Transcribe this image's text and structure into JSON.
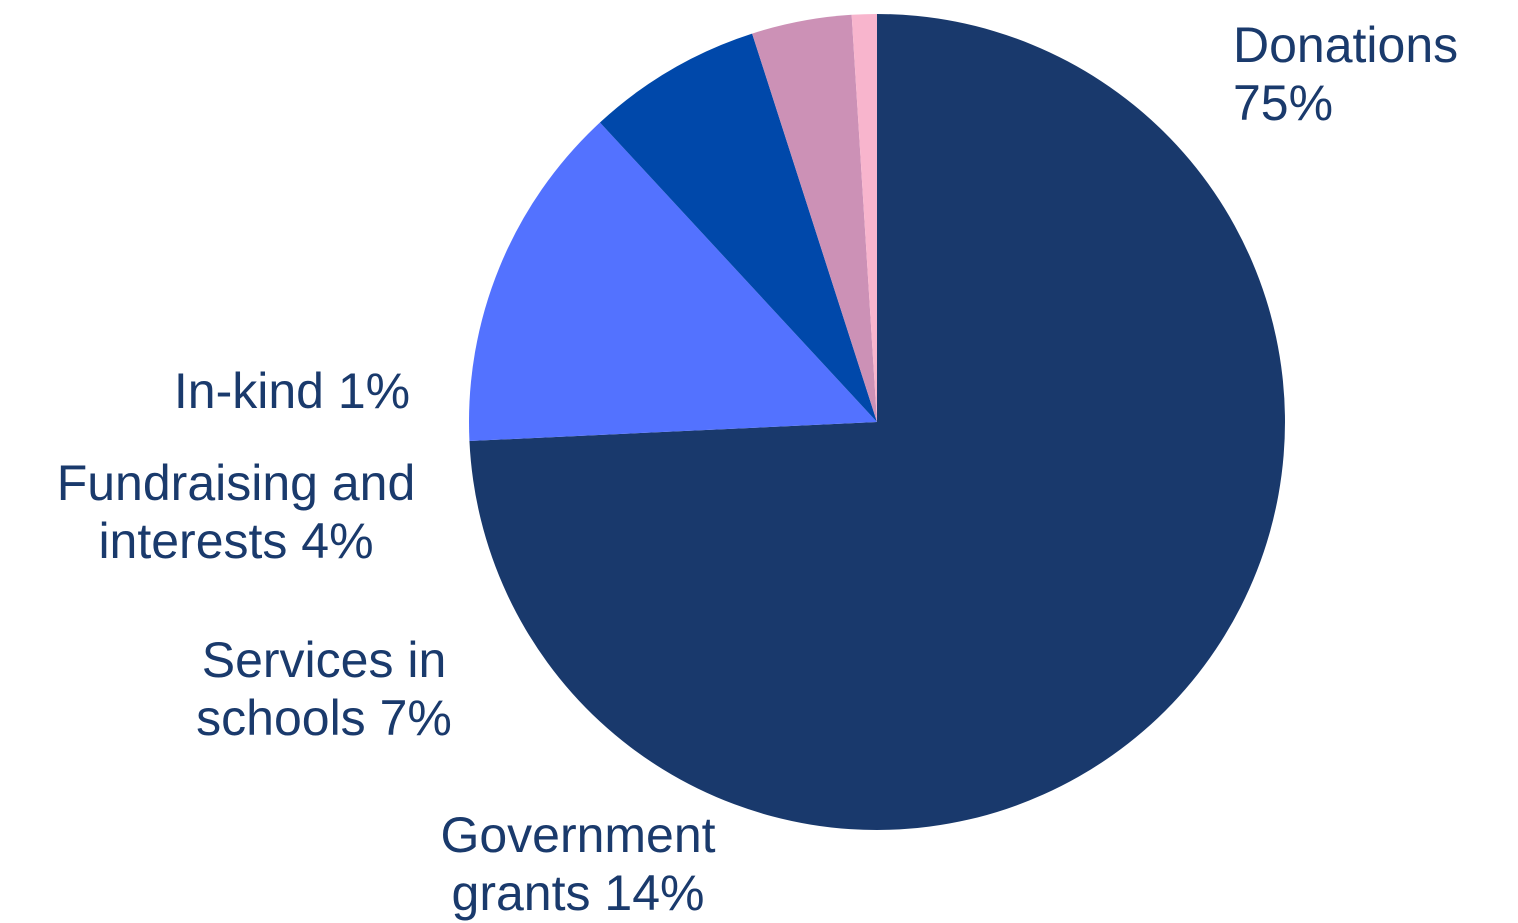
{
  "chart_data": {
    "type": "pie",
    "title": "",
    "slices": [
      {
        "label_lines": [
          "Donations",
          "75%"
        ],
        "value": 75,
        "color": "#19396c"
      },
      {
        "label_lines": [
          "Government",
          "grants 14%"
        ],
        "value": 14,
        "color": "#5372ff"
      },
      {
        "label_lines": [
          "Services in",
          "schools 7%"
        ],
        "value": 7,
        "color": "#0048aa"
      },
      {
        "label_lines": [
          "Fundraising and",
          "interests 4%"
        ],
        "value": 4,
        "color": "#cc91b6"
      },
      {
        "label_lines": [
          "In-kind 1%"
        ],
        "value": 1,
        "color": "#f8b5cd"
      }
    ],
    "label_color": "#1a3a6c",
    "legend": "none"
  }
}
